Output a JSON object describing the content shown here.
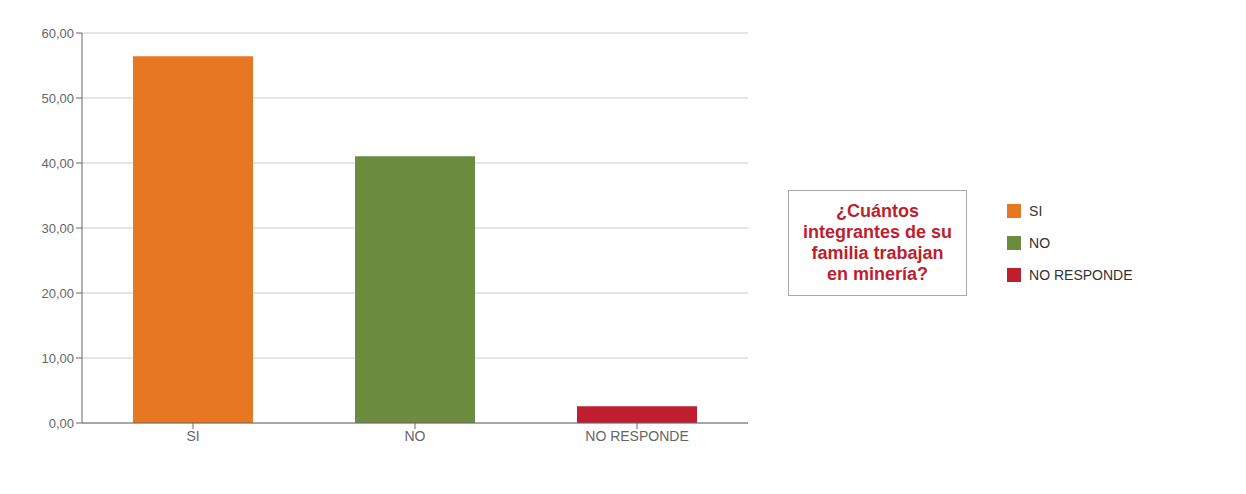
{
  "chart_data": {
    "type": "bar",
    "categories": [
      "SI",
      "NO",
      "NO RESPONDE"
    ],
    "values": [
      56.41,
      41.03,
      2.56
    ],
    "colors": [
      "#E87722",
      "#6B8C3E",
      "#BE1E2D"
    ],
    "ylim": [
      0,
      60
    ],
    "yticks": [
      {
        "value": 0,
        "label": "0,00"
      },
      {
        "value": 10,
        "label": "10,00"
      },
      {
        "value": 20,
        "label": "20,00"
      },
      {
        "value": 30,
        "label": "30,00"
      },
      {
        "value": 40,
        "label": "40,00"
      },
      {
        "value": 50,
        "label": "50,00"
      },
      {
        "value": 60,
        "label": "60,00"
      }
    ],
    "grid": true,
    "legend": "right",
    "annotations": [
      {
        "text": "¿Cuántos\nintegrantes de su\nfamilia trabajan\nen minería?",
        "color": "#BE1E2D"
      }
    ]
  }
}
